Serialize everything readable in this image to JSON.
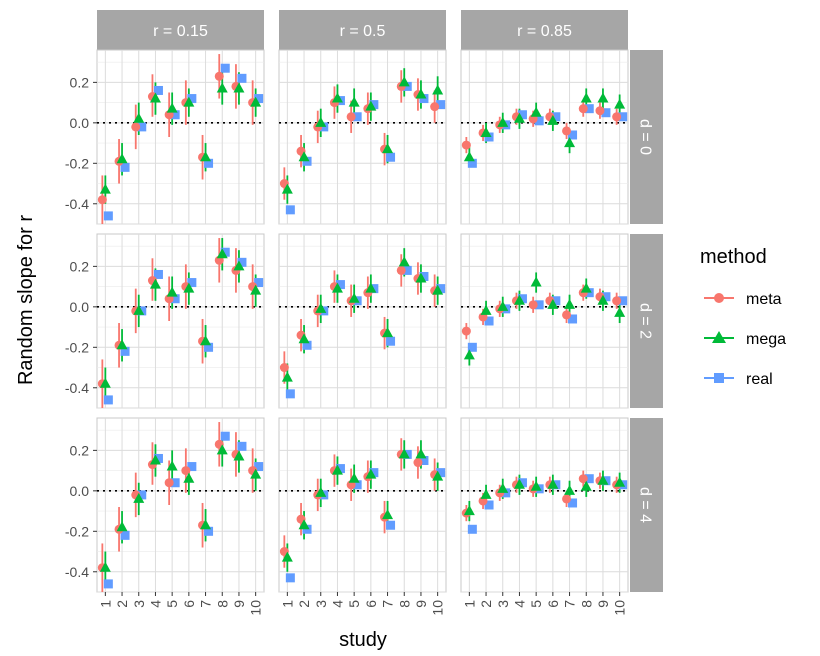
{
  "chart_data": {
    "type": "scatter",
    "xlabel": "study",
    "ylabel": "Random slope for r",
    "x_categories": [
      "1",
      "2",
      "3",
      "4",
      "5",
      "6",
      "7",
      "8",
      "9",
      "10"
    ],
    "ylim": [
      -0.5,
      0.36
    ],
    "y_ticks": [
      -0.4,
      -0.2,
      0.0,
      0.2
    ],
    "y_tick_labels": [
      "-0.4",
      "-0.2",
      "0.0",
      "0.2"
    ],
    "reference_line": 0,
    "grid": true,
    "legend": {
      "title": "method",
      "position": "right",
      "entries": [
        {
          "name": "meta",
          "color": "#F8766D",
          "shape": "circle"
        },
        {
          "name": "mega",
          "color": "#00BA38",
          "shape": "triangle"
        },
        {
          "name": "real",
          "color": "#619CFF",
          "shape": "square"
        }
      ]
    },
    "column_strips": [
      "r = 0.15",
      "r = 0.5",
      "r = 0.85"
    ],
    "row_strips": [
      "d = 0",
      "d = 2",
      "d = 4"
    ],
    "panels": [
      {
        "row": 0,
        "col": 0,
        "series": [
          {
            "name": "meta",
            "values": [
              -0.38,
              -0.19,
              -0.02,
              0.13,
              0.04,
              0.1,
              -0.17,
              0.23,
              0.18,
              0.1
            ],
            "lower": [
              -0.5,
              -0.3,
              -0.13,
              0.03,
              -0.07,
              -0.01,
              -0.28,
              0.12,
              0.07,
              -0.01
            ],
            "upper": [
              -0.26,
              -0.08,
              0.09,
              0.24,
              0.15,
              0.21,
              -0.06,
              0.34,
              0.29,
              0.21
            ]
          },
          {
            "name": "mega",
            "values": [
              -0.33,
              -0.18,
              0.02,
              0.12,
              0.07,
              0.1,
              -0.17,
              0.17,
              0.17,
              0.1
            ],
            "lower": [
              -0.4,
              -0.26,
              -0.06,
              0.04,
              -0.01,
              0.03,
              -0.24,
              0.09,
              0.09,
              0.03
            ],
            "upper": [
              -0.26,
              -0.1,
              0.1,
              0.2,
              0.15,
              0.17,
              -0.1,
              0.25,
              0.25,
              0.17
            ]
          },
          {
            "name": "real",
            "values": [
              -0.46,
              -0.22,
              -0.02,
              0.16,
              0.04,
              0.12,
              -0.2,
              0.27,
              0.22,
              0.12
            ]
          }
        ]
      },
      {
        "row": 0,
        "col": 1,
        "series": [
          {
            "name": "meta",
            "values": [
              -0.3,
              -0.14,
              -0.02,
              0.1,
              0.03,
              0.07,
              -0.13,
              0.18,
              0.14,
              0.08
            ],
            "lower": [
              -0.38,
              -0.22,
              -0.1,
              0.02,
              -0.05,
              -0.01,
              -0.21,
              0.1,
              0.06,
              0.0
            ],
            "upper": [
              -0.22,
              -0.06,
              0.06,
              0.18,
              0.11,
              0.15,
              -0.05,
              0.26,
              0.22,
              0.16
            ]
          },
          {
            "name": "mega",
            "values": [
              -0.33,
              -0.17,
              0.0,
              0.12,
              0.1,
              0.08,
              -0.13,
              0.2,
              0.14,
              0.16
            ],
            "lower": [
              -0.4,
              -0.24,
              -0.07,
              0.05,
              0.03,
              0.01,
              -0.2,
              0.13,
              0.07,
              0.09
            ],
            "upper": [
              -0.26,
              -0.1,
              0.07,
              0.19,
              0.17,
              0.15,
              -0.06,
              0.27,
              0.21,
              0.23
            ]
          },
          {
            "name": "real",
            "values": [
              -0.43,
              -0.19,
              -0.02,
              0.11,
              0.03,
              0.09,
              -0.17,
              0.18,
              0.12,
              0.09
            ]
          }
        ]
      },
      {
        "row": 0,
        "col": 2,
        "series": [
          {
            "name": "meta",
            "values": [
              -0.11,
              -0.05,
              -0.01,
              0.03,
              0.02,
              0.03,
              -0.04,
              0.07,
              0.06,
              0.03
            ],
            "lower": [
              -0.15,
              -0.09,
              -0.05,
              -0.01,
              -0.02,
              -0.01,
              -0.08,
              0.03,
              0.02,
              -0.01
            ],
            "upper": [
              -0.07,
              -0.01,
              0.03,
              0.07,
              0.06,
              0.07,
              0.0,
              0.11,
              0.1,
              0.07
            ]
          },
          {
            "name": "mega",
            "values": [
              -0.17,
              -0.05,
              0.0,
              0.02,
              0.05,
              0.01,
              -0.1,
              0.12,
              0.12,
              0.09
            ],
            "lower": [
              -0.22,
              -0.1,
              -0.05,
              -0.03,
              0.0,
              -0.04,
              -0.15,
              0.07,
              0.07,
              0.04
            ],
            "upper": [
              -0.12,
              0.0,
              0.05,
              0.07,
              0.1,
              0.06,
              -0.05,
              0.17,
              0.17,
              0.14
            ]
          },
          {
            "name": "real",
            "values": [
              -0.2,
              -0.07,
              -0.01,
              0.04,
              0.01,
              0.03,
              -0.06,
              0.07,
              0.05,
              0.03
            ]
          }
        ]
      },
      {
        "row": 1,
        "col": 0,
        "series": [
          {
            "name": "meta",
            "values": [
              -0.38,
              -0.19,
              -0.02,
              0.13,
              0.04,
              0.1,
              -0.17,
              0.23,
              0.18,
              0.1
            ],
            "lower": [
              -0.5,
              -0.3,
              -0.13,
              0.03,
              -0.07,
              -0.01,
              -0.28,
              0.12,
              0.07,
              -0.01
            ],
            "upper": [
              -0.26,
              -0.08,
              0.09,
              0.24,
              0.15,
              0.21,
              -0.06,
              0.34,
              0.29,
              0.21
            ]
          },
          {
            "name": "mega",
            "values": [
              -0.38,
              -0.19,
              -0.02,
              0.11,
              0.07,
              0.09,
              -0.17,
              0.26,
              0.2,
              0.08
            ],
            "lower": [
              -0.46,
              -0.27,
              -0.1,
              0.03,
              -0.01,
              0.01,
              -0.25,
              0.18,
              0.12,
              0.0
            ],
            "upper": [
              -0.3,
              -0.11,
              0.06,
              0.19,
              0.15,
              0.17,
              -0.09,
              0.34,
              0.28,
              0.16
            ]
          },
          {
            "name": "real",
            "values": [
              -0.46,
              -0.22,
              -0.02,
              0.16,
              0.04,
              0.12,
              -0.2,
              0.27,
              0.22,
              0.12
            ]
          }
        ]
      },
      {
        "row": 1,
        "col": 1,
        "series": [
          {
            "name": "meta",
            "values": [
              -0.3,
              -0.14,
              -0.02,
              0.1,
              0.03,
              0.07,
              -0.13,
              0.18,
              0.14,
              0.08
            ],
            "lower": [
              -0.38,
              -0.22,
              -0.1,
              0.02,
              -0.05,
              -0.01,
              -0.21,
              0.1,
              0.06,
              0.0
            ],
            "upper": [
              -0.22,
              -0.06,
              0.06,
              0.18,
              0.11,
              0.15,
              -0.05,
              0.26,
              0.22,
              0.16
            ]
          },
          {
            "name": "mega",
            "values": [
              -0.35,
              -0.16,
              -0.01,
              0.09,
              0.04,
              0.09,
              -0.13,
              0.22,
              0.14,
              0.08
            ],
            "lower": [
              -0.42,
              -0.23,
              -0.08,
              0.02,
              -0.03,
              0.02,
              -0.2,
              0.15,
              0.07,
              0.01
            ],
            "upper": [
              -0.28,
              -0.09,
              0.06,
              0.16,
              0.11,
              0.16,
              -0.06,
              0.29,
              0.21,
              0.15
            ]
          },
          {
            "name": "real",
            "values": [
              -0.43,
              -0.19,
              -0.02,
              0.11,
              0.03,
              0.09,
              -0.17,
              0.18,
              0.15,
              0.09
            ]
          }
        ]
      },
      {
        "row": 1,
        "col": 2,
        "series": [
          {
            "name": "meta",
            "values": [
              -0.12,
              -0.05,
              -0.01,
              0.03,
              0.01,
              0.03,
              -0.04,
              0.07,
              0.05,
              0.03
            ],
            "lower": [
              -0.16,
              -0.09,
              -0.05,
              -0.01,
              -0.03,
              -0.01,
              -0.08,
              0.03,
              0.01,
              -0.01
            ],
            "upper": [
              -0.08,
              -0.01,
              0.03,
              0.07,
              0.05,
              0.07,
              0.0,
              0.11,
              0.09,
              0.07
            ]
          },
          {
            "name": "mega",
            "values": [
              -0.24,
              -0.02,
              0.0,
              0.03,
              0.12,
              0.01,
              0.01,
              0.09,
              0.03,
              -0.03
            ],
            "lower": [
              -0.29,
              -0.07,
              -0.05,
              -0.02,
              0.07,
              -0.04,
              -0.04,
              0.04,
              -0.02,
              -0.08
            ],
            "upper": [
              -0.19,
              0.03,
              0.05,
              0.08,
              0.17,
              0.06,
              0.06,
              0.14,
              0.08,
              0.02
            ]
          },
          {
            "name": "real",
            "values": [
              -0.2,
              -0.07,
              -0.01,
              0.04,
              0.01,
              0.03,
              -0.06,
              0.07,
              0.05,
              0.03
            ]
          }
        ]
      },
      {
        "row": 2,
        "col": 0,
        "series": [
          {
            "name": "meta",
            "values": [
              -0.38,
              -0.19,
              -0.02,
              0.13,
              0.04,
              0.1,
              -0.17,
              0.23,
              0.18,
              0.1
            ],
            "lower": [
              -0.5,
              -0.3,
              -0.13,
              0.03,
              -0.07,
              -0.01,
              -0.28,
              0.12,
              0.07,
              -0.01
            ],
            "upper": [
              -0.26,
              -0.08,
              0.09,
              0.24,
              0.15,
              0.21,
              -0.06,
              0.34,
              0.29,
              0.21
            ]
          },
          {
            "name": "mega",
            "values": [
              -0.38,
              -0.18,
              -0.04,
              0.15,
              0.12,
              0.06,
              -0.17,
              0.2,
              0.17,
              0.08
            ],
            "lower": [
              -0.46,
              -0.26,
              -0.12,
              0.07,
              0.04,
              -0.02,
              -0.25,
              0.12,
              0.09,
              0.0
            ],
            "upper": [
              -0.3,
              -0.1,
              0.04,
              0.23,
              0.2,
              0.14,
              -0.09,
              0.28,
              0.25,
              0.16
            ]
          },
          {
            "name": "real",
            "values": [
              -0.46,
              -0.22,
              -0.02,
              0.16,
              0.04,
              0.12,
              -0.2,
              0.27,
              0.22,
              0.12
            ]
          }
        ]
      },
      {
        "row": 2,
        "col": 1,
        "series": [
          {
            "name": "meta",
            "values": [
              -0.3,
              -0.14,
              -0.02,
              0.1,
              0.03,
              0.07,
              -0.13,
              0.18,
              0.14,
              0.08
            ],
            "lower": [
              -0.38,
              -0.22,
              -0.1,
              0.02,
              -0.05,
              -0.01,
              -0.21,
              0.1,
              0.06,
              0.0
            ],
            "upper": [
              -0.22,
              -0.06,
              0.06,
              0.18,
              0.11,
              0.15,
              -0.05,
              0.26,
              0.22,
              0.16
            ]
          },
          {
            "name": "mega",
            "values": [
              -0.33,
              -0.17,
              -0.01,
              0.1,
              0.06,
              0.08,
              -0.12,
              0.18,
              0.18,
              0.07
            ],
            "lower": [
              -0.4,
              -0.24,
              -0.08,
              0.03,
              -0.01,
              0.01,
              -0.19,
              0.11,
              0.11,
              0.0
            ],
            "upper": [
              -0.26,
              -0.1,
              0.06,
              0.17,
              0.13,
              0.15,
              -0.05,
              0.25,
              0.25,
              0.14
            ]
          },
          {
            "name": "real",
            "values": [
              -0.43,
              -0.19,
              -0.02,
              0.11,
              0.03,
              0.09,
              -0.17,
              0.18,
              0.15,
              0.09
            ]
          }
        ]
      },
      {
        "row": 2,
        "col": 2,
        "series": [
          {
            "name": "meta",
            "values": [
              -0.11,
              -0.05,
              -0.01,
              0.03,
              0.01,
              0.03,
              -0.04,
              0.06,
              0.05,
              0.03
            ],
            "lower": [
              -0.15,
              -0.09,
              -0.05,
              -0.01,
              -0.03,
              -0.01,
              -0.08,
              0.02,
              0.01,
              -0.01
            ],
            "upper": [
              -0.07,
              -0.01,
              0.03,
              0.07,
              0.05,
              0.07,
              0.0,
              0.1,
              0.09,
              0.07
            ]
          },
          {
            "name": "mega",
            "values": [
              -0.1,
              -0.02,
              0.01,
              0.03,
              0.02,
              0.03,
              0.0,
              0.02,
              0.05,
              0.04
            ],
            "lower": [
              -0.15,
              -0.07,
              -0.04,
              -0.02,
              -0.03,
              -0.02,
              -0.05,
              -0.03,
              0.0,
              -0.01
            ],
            "upper": [
              -0.05,
              0.03,
              0.06,
              0.08,
              0.07,
              0.08,
              0.05,
              0.07,
              0.1,
              0.09
            ]
          },
          {
            "name": "real",
            "values": [
              -0.19,
              -0.07,
              -0.01,
              0.04,
              0.01,
              0.03,
              -0.06,
              0.06,
              0.05,
              0.03
            ]
          }
        ]
      }
    ]
  }
}
